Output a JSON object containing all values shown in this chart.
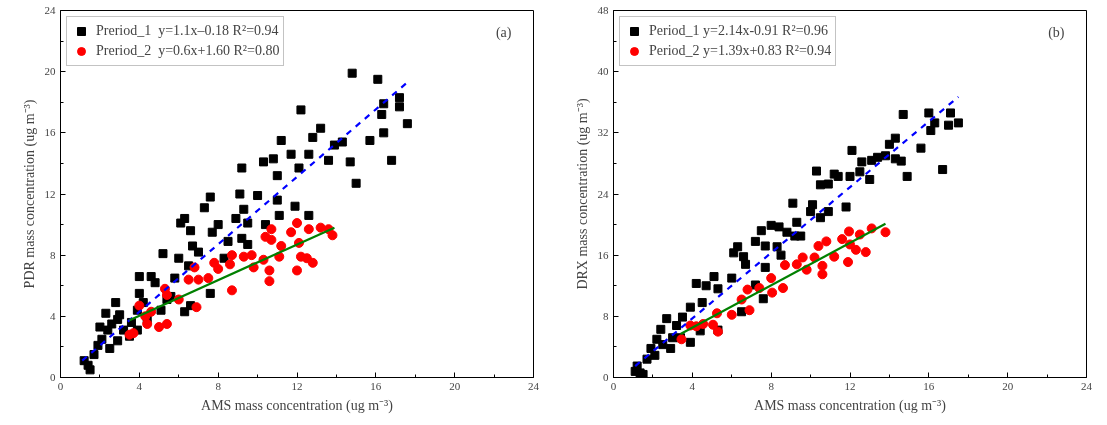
{
  "chart_data": [
    {
      "type": "scatter",
      "xlabel": "AMS mass concentration (ug m⁻³)",
      "ylabel": "PDR mass concentration (ug m⁻³)",
      "xlim": [
        0,
        24
      ],
      "ylim": [
        0,
        24
      ],
      "xticks": [
        0,
        4,
        8,
        12,
        16,
        20,
        24
      ],
      "yticks": [
        0,
        4,
        8,
        12,
        16,
        20,
        24
      ],
      "grid": false,
      "legend": "top left",
      "annotations": [
        "(a)"
      ],
      "series": [
        {
          "name": "Preriod_1  y=1.1x–0.18 R²=0.94",
          "marker": "square",
          "color": "#000000",
          "x": [
            14.8,
            16.1,
            17.2,
            17.2,
            16.4,
            16.3,
            17.6,
            15.7,
            16.4,
            16.8,
            15.0,
            14.7,
            12.2,
            13.2,
            12.8,
            14.3,
            13.9,
            13.6,
            12.6,
            11.7,
            12.1,
            11.2,
            10.8,
            10.3,
            11.0,
            9.2,
            7.6,
            7.3,
            9.1,
            10.0,
            9.3,
            11.0,
            11.9,
            11.1,
            12.6,
            10.4,
            9.5,
            8.9,
            8.0,
            6.1,
            6.3,
            6.6,
            7.7,
            8.5,
            9.2,
            9.5,
            6.7,
            5.2,
            6.0,
            7.0,
            8.3,
            6.5,
            4.6,
            4.0,
            4.8,
            5.8,
            7.6,
            4.0,
            6.3,
            6.6,
            5.6,
            1.4,
            1.5,
            1.2,
            1.7,
            1.9,
            2.1,
            2.4,
            2.3,
            2.8,
            2.5,
            2.9,
            3.2,
            3.6,
            2.9,
            3.9,
            3.5,
            3.9,
            4.4,
            5.1,
            5.4,
            2.0,
            2.6,
            3.0,
            4.2
          ],
          "values": [
            19.9,
            19.5,
            18.3,
            17.7,
            17.9,
            17.2,
            16.6,
            15.5,
            16.0,
            14.2,
            12.7,
            14.1,
            17.5,
            16.3,
            15.7,
            15.4,
            15.2,
            14.2,
            14.6,
            14.6,
            13.7,
            15.5,
            14.3,
            14.1,
            13.2,
            13.7,
            11.8,
            11.1,
            12.0,
            11.9,
            11.0,
            11.6,
            11.2,
            10.6,
            10.6,
            10.0,
            10.1,
            10.4,
            10.0,
            10.1,
            10.4,
            9.6,
            9.5,
            8.9,
            9.1,
            8.7,
            8.6,
            8.1,
            7.8,
            8.2,
            7.8,
            7.3,
            6.6,
            6.6,
            6.2,
            6.5,
            5.5,
            5.5,
            4.3,
            4.7,
            5.3,
            0.8,
            0.5,
            1.1,
            1.5,
            2.1,
            2.5,
            3.1,
            4.2,
            4.9,
            1.9,
            2.4,
            3.1,
            3.6,
            3.8,
            4.4,
            2.7,
            3.1,
            3.8,
            4.4,
            5.1,
            3.3,
            3.5,
            4.1,
            4.9
          ]
        },
        {
          "name": "Preriod_2  y=0.6x+1.60 R²=0.80",
          "marker": "circle",
          "color": "#ff0000",
          "x": [
            3.5,
            3.7,
            4.4,
            4.3,
            4.0,
            4.6,
            5.0,
            5.4,
            5.4,
            6.0,
            5.3,
            6.9,
            6.5,
            7.0,
            7.5,
            6.8,
            7.8,
            8.0,
            8.6,
            8.7,
            8.7,
            9.3,
            9.7,
            9.8,
            10.3,
            10.6,
            10.6,
            10.4,
            10.7,
            10.7,
            11.1,
            11.2,
            11.7,
            12.0,
            12.0,
            12.1,
            12.2,
            12.5,
            12.6,
            12.8,
            13.2,
            13.6,
            13.8
          ],
          "values": [
            2.8,
            2.9,
            3.5,
            4.0,
            4.7,
            4.3,
            3.3,
            3.5,
            5.4,
            5.1,
            5.8,
            4.6,
            6.4,
            6.4,
            6.5,
            7.2,
            7.5,
            7.1,
            7.4,
            8.0,
            5.7,
            7.9,
            8.0,
            7.2,
            7.7,
            6.3,
            7.0,
            9.2,
            9.0,
            9.7,
            7.9,
            8.6,
            9.5,
            10.1,
            7.0,
            8.8,
            7.9,
            7.8,
            9.7,
            7.5,
            9.8,
            9.7,
            9.3
          ]
        },
        {
          "type": "line",
          "line_style": "dashed",
          "color": "#0000ff",
          "x": [
            1.1,
            17.6
          ],
          "values": [
            1.1,
            19.3
          ]
        },
        {
          "type": "line",
          "line_style": "solid",
          "color": "#008000",
          "x": [
            3.5,
            13.9
          ],
          "values": [
            3.75,
            9.8
          ]
        }
      ]
    },
    {
      "type": "scatter",
      "xlabel": "AMS mass concentration (ug m⁻³)",
      "ylabel": "DRX mass concentration (ug m⁻³)",
      "xlim": [
        0,
        24
      ],
      "ylim": [
        0,
        48
      ],
      "xticks": [
        0,
        4,
        8,
        12,
        16,
        20,
        24
      ],
      "yticks": [
        0,
        8,
        16,
        24,
        32,
        40,
        48
      ],
      "grid": false,
      "legend": "top left",
      "annotations": [
        "(b)"
      ],
      "series": [
        {
          "name": "Period_1 y=2.14x-0.91 R²=0.96",
          "marker": "square",
          "color": "#000000",
          "x": [
            14.7,
            16.0,
            17.1,
            16.3,
            17.0,
            17.5,
            16.1,
            15.6,
            16.7,
            14.9,
            14.6,
            14.3,
            14.0,
            14.3,
            13.8,
            13.4,
            13.1,
            12.6,
            13.0,
            12.1,
            12.0,
            12.5,
            11.4,
            11.2,
            11.8,
            10.9,
            10.3,
            10.5,
            10.9,
            10.1,
            10.0,
            10.5,
            9.1,
            9.3,
            8.8,
            9.2,
            9.5,
            8.0,
            7.5,
            7.2,
            8.4,
            8.3,
            8.5,
            7.7,
            7.7,
            6.3,
            6.1,
            6.6,
            6.7,
            5.1,
            4.7,
            4.2,
            6.0,
            5.3,
            7.6,
            7.2,
            6.5,
            5.3,
            4.5,
            3.9,
            3.9,
            4.4,
            1.2,
            1.35,
            1.5,
            1.1,
            1.7,
            1.9,
            2.2,
            2.4,
            2.7,
            2.9,
            3.2,
            3.5,
            3.4,
            2.1,
            2.5,
            3.0
          ],
          "values": [
            34.4,
            34.6,
            34.6,
            33.3,
            33.0,
            33.3,
            32.3,
            30.0,
            27.2,
            26.3,
            28.3,
            28.6,
            30.5,
            31.3,
            29.0,
            28.8,
            28.4,
            28.2,
            25.9,
            29.7,
            26.3,
            26.9,
            26.3,
            26.6,
            22.3,
            25.3,
            27.0,
            25.2,
            21.7,
            22.6,
            21.7,
            20.9,
            22.8,
            20.3,
            19.0,
            18.5,
            18.5,
            19.9,
            19.2,
            17.8,
            19.7,
            17.1,
            16.0,
            17.2,
            14.4,
            17.1,
            16.3,
            15.8,
            14.8,
            13.2,
            12.0,
            12.3,
            13.0,
            11.6,
            10.3,
            12.1,
            8.6,
            6.2,
            9.8,
            9.2,
            4.6,
            6.1,
            1.5,
            0.6,
            0.4,
            0.8,
            2.4,
            3.8,
            5.0,
            6.3,
            7.7,
            3.8,
            6.8,
            7.9,
            5.2,
            2.9,
            4.3,
            5.2
          ]
        },
        {
          "name": "Period_2 y=1.39x+0.83 R²=0.94",
          "marker": "circle",
          "color": "#ff0000",
          "x": [
            3.45,
            3.9,
            4.2,
            4.55,
            5.05,
            5.3,
            5.25,
            6.0,
            6.5,
            6.9,
            6.8,
            7.4,
            8.0,
            8.05,
            8.6,
            8.7,
            9.3,
            9.6,
            9.8,
            10.2,
            10.4,
            10.6,
            10.6,
            10.8,
            11.2,
            11.6,
            11.9,
            11.95,
            12.0,
            12.3,
            12.5,
            12.8,
            13.1,
            13.6,
            13.8
          ],
          "values": [
            5.0,
            6.8,
            6.7,
            7.0,
            6.9,
            6.0,
            8.4,
            8.2,
            10.2,
            8.8,
            11.5,
            11.7,
            13.0,
            11.1,
            11.7,
            14.7,
            14.8,
            15.7,
            14.1,
            15.7,
            17.2,
            13.5,
            14.6,
            17.8,
            15.8,
            18.1,
            15.1,
            19.1,
            17.4,
            16.7,
            18.7,
            16.4,
            19.5,
            null,
            19.0
          ]
        },
        {
          "type": "line",
          "line_style": "dashed",
          "color": "#0000ff",
          "x": [
            1.1,
            17.5
          ],
          "values": [
            1.5,
            36.7
          ]
        },
        {
          "type": "line",
          "line_style": "solid",
          "color": "#008000",
          "x": [
            3.4,
            13.8
          ],
          "values": [
            5.7,
            20.1
          ]
        }
      ]
    }
  ]
}
